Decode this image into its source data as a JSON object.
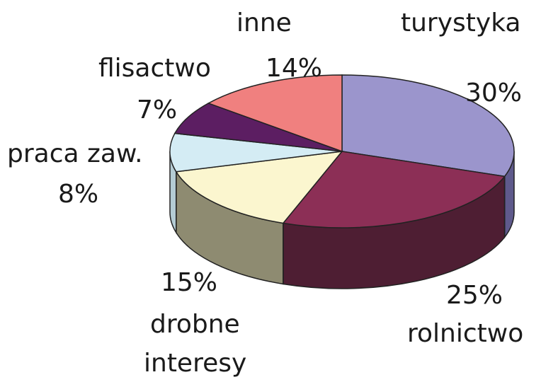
{
  "chart_data": {
    "type": "pie",
    "title": "",
    "unit": "%",
    "style": "3d",
    "slices": [
      {
        "name": "turystyka",
        "label": "turystyka",
        "pct_label": "30%",
        "value": 30,
        "color": "#9b95cc"
      },
      {
        "name": "rolnictwo",
        "label": "rolnictwo",
        "pct_label": "25%",
        "value": 25,
        "color": "#8c2f56"
      },
      {
        "name": "drobne interesy",
        "label": [
          "drobne",
          "interesy"
        ],
        "pct_label": "15%",
        "value": 15,
        "color": "#fbf6cf"
      },
      {
        "name": "praca zaw.",
        "label": "praca zaw.",
        "pct_label": "8%",
        "value": 8,
        "color": "#d4ecf4"
      },
      {
        "name": "flisactwo",
        "label": "flisactwo",
        "pct_label": "7%",
        "value": 7,
        "color": "#5c1e62"
      },
      {
        "name": "inne",
        "label": "inne",
        "pct_label": "14%",
        "value": 14,
        "color": "#f0807f"
      }
    ],
    "side_colors": {
      "turystyka": "#5f5a8c",
      "rolnictwo": "#4e1e33",
      "drobne interesy": "#8e8b71",
      "praca zaw.": "#b4ccd4"
    }
  }
}
